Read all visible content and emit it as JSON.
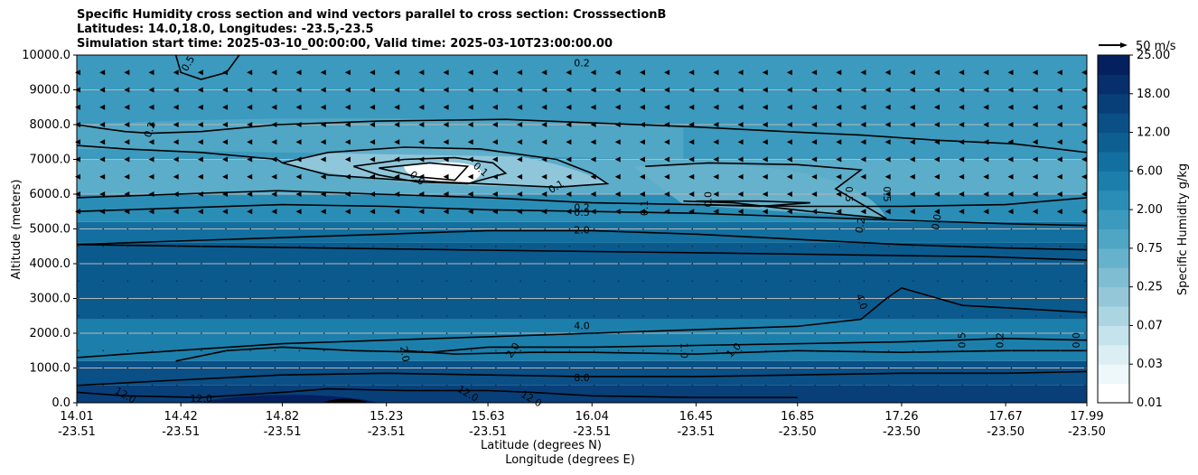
{
  "chart_data": {
    "type": "heatmap",
    "title_lines": [
      "Specific Humidity cross section and wind vectors parallel to cross section: CrosssectionB",
      "Latitudes: 14.0,18.0, Longitudes: -23.5,-23.5",
      "Simulation start time: 2025-03-10_00:00:00, Valid time: 2025-03-10T23:00:00.00"
    ],
    "ylabel": "Altitude (meters)",
    "xlabel_lat": "Latitude (degrees N)",
    "xlabel_lon": "Longitude (degrees E)",
    "ylim": [
      0,
      10000
    ],
    "yticks": [
      "0.0",
      "1000.0",
      "2000.0",
      "3000.0",
      "4000.0",
      "5000.0",
      "6000.0",
      "7000.0",
      "8000.0",
      "9000.0",
      "10000.0"
    ],
    "xticks": [
      {
        "lat": "14.01",
        "lon": "-23.51"
      },
      {
        "lat": "14.42",
        "lon": "-23.51"
      },
      {
        "lat": "14.82",
        "lon": "-23.51"
      },
      {
        "lat": "15.23",
        "lon": "-23.51"
      },
      {
        "lat": "15.63",
        "lon": "-23.51"
      },
      {
        "lat": "16.04",
        "lon": "-23.51"
      },
      {
        "lat": "16.45",
        "lon": "-23.51"
      },
      {
        "lat": "16.85",
        "lon": "-23.50"
      },
      {
        "lat": "17.26",
        "lon": "-23.50"
      },
      {
        "lat": "17.67",
        "lon": "-23.50"
      },
      {
        "lat": "17.99",
        "lon": "-23.50"
      }
    ],
    "grid": "horizontal",
    "colorbar": {
      "label": "Specific Humidity g/kg",
      "ticks": [
        "0.01",
        "0.03",
        "0.07",
        "0.25",
        "0.75",
        "2.00",
        "6.00",
        "12.00",
        "18.00",
        "25.00"
      ],
      "colors": [
        "#ffffff",
        "#eef7f9",
        "#dbeef3",
        "#c5e3ec",
        "#acd5e2",
        "#94c8d9",
        "#7ebdd2",
        "#66b1cb",
        "#4ea5c4",
        "#3b9abe",
        "#2a8db6",
        "#1c7fab",
        "#136f9f",
        "#0d5f92",
        "#0a4f86",
        "#083f79",
        "#062f6b",
        "#04205e"
      ]
    },
    "wind_key": {
      "label": "50 m/s"
    },
    "contour_labels": [
      "0.5",
      "0.2",
      "0.0",
      "0.1",
      "0.1",
      "0.2",
      "0.5",
      "2.0",
      "0.1",
      "0.0",
      "0.5",
      "0.5",
      "0.2",
      "0.0",
      "4.0",
      "4.0",
      "2.0",
      "2.0",
      "1.0",
      "1.0",
      "0.5",
      "0.2",
      "0.0",
      "8.0",
      "12.0",
      "12.0",
      "12.0",
      "12.0",
      "0.2"
    ],
    "contour_lines": [
      {
        "level": "0.5",
        "points": [
          [
            14.4,
            10000
          ],
          [
            14.42,
            9500
          ],
          [
            14.5,
            9300
          ],
          [
            14.6,
            9500
          ],
          [
            14.65,
            10000
          ]
        ]
      },
      {
        "level": "0.2",
        "points": [
          [
            14.01,
            8000
          ],
          [
            14.1,
            7900
          ],
          [
            14.2,
            7800
          ],
          [
            14.3,
            7750
          ],
          [
            14.5,
            7800
          ],
          [
            14.8,
            8000
          ],
          [
            15.2,
            8100
          ],
          [
            15.7,
            8150
          ],
          [
            16.04,
            8050
          ],
          [
            16.4,
            7950
          ],
          [
            16.8,
            7800
          ],
          [
            17.1,
            7700
          ],
          [
            17.4,
            7550
          ],
          [
            17.7,
            7450
          ],
          [
            17.99,
            7200
          ]
        ]
      },
      {
        "level": "0.2",
        "points": [
          [
            14.01,
            7400
          ],
          [
            14.2,
            7300
          ],
          [
            14.5,
            7200
          ],
          [
            14.8,
            7000
          ],
          [
            14.82,
            6900
          ]
        ]
      },
      {
        "level": "0.1",
        "points": [
          [
            14.82,
            6900
          ],
          [
            15.0,
            7200
          ],
          [
            15.3,
            7350
          ],
          [
            15.6,
            7300
          ],
          [
            15.9,
            7000
          ],
          [
            16.04,
            6600
          ],
          [
            16.1,
            6300
          ],
          [
            15.9,
            6200
          ],
          [
            15.6,
            6300
          ],
          [
            15.3,
            6400
          ],
          [
            15.0,
            6550
          ],
          [
            14.82,
            6900
          ]
        ]
      },
      {
        "level": "0.0",
        "points": [
          [
            15.1,
            6800
          ],
          [
            15.3,
            7000
          ],
          [
            15.5,
            7050
          ],
          [
            15.65,
            6900
          ],
          [
            15.7,
            6600
          ],
          [
            15.55,
            6300
          ],
          [
            15.35,
            6350
          ],
          [
            15.2,
            6550
          ],
          [
            15.1,
            6800
          ]
        ]
      },
      {
        "level": "0.0",
        "points": [
          [
            15.2,
            6750
          ],
          [
            15.4,
            6900
          ],
          [
            15.55,
            6800
          ],
          [
            15.5,
            6400
          ],
          [
            15.35,
            6500
          ],
          [
            15.2,
            6750
          ]
        ]
      },
      {
        "level": "0.1",
        "points": [
          [
            16.25,
            6800
          ],
          [
            16.5,
            6900
          ],
          [
            16.85,
            6850
          ],
          [
            17.1,
            6700
          ],
          [
            17.0,
            6150
          ],
          [
            17.2,
            5300
          ],
          [
            16.9,
            5500
          ],
          [
            16.6,
            5750
          ],
          [
            16.4,
            5800
          ]
        ]
      },
      {
        "level": "0.0",
        "points": [
          [
            16.45,
            5800
          ],
          [
            16.7,
            5800
          ],
          [
            16.9,
            5750
          ],
          [
            16.7,
            5650
          ],
          [
            16.45,
            5700
          ]
        ]
      },
      {
        "level": "0.2",
        "points": [
          [
            14.01,
            5900
          ],
          [
            14.4,
            6000
          ],
          [
            14.8,
            6100
          ],
          [
            15.2,
            6000
          ],
          [
            15.63,
            5900
          ],
          [
            16.04,
            5750
          ],
          [
            16.45,
            5700
          ],
          [
            16.85,
            5650
          ],
          [
            17.26,
            5650
          ],
          [
            17.67,
            5700
          ],
          [
            17.99,
            5900
          ]
        ]
      },
      {
        "level": "0.5",
        "points": [
          [
            14.01,
            5500
          ],
          [
            14.4,
            5600
          ],
          [
            14.82,
            5700
          ],
          [
            15.23,
            5650
          ],
          [
            15.63,
            5550
          ],
          [
            16.04,
            5500
          ],
          [
            16.45,
            5450
          ],
          [
            16.85,
            5350
          ],
          [
            17.26,
            5250
          ],
          [
            17.67,
            5150
          ],
          [
            17.99,
            5100
          ]
        ]
      },
      {
        "level": "2.0",
        "points": [
          [
            14.01,
            4550
          ],
          [
            14.4,
            4650
          ],
          [
            14.82,
            4750
          ],
          [
            15.23,
            4850
          ],
          [
            15.63,
            4950
          ],
          [
            16.04,
            4950
          ],
          [
            16.45,
            4850
          ],
          [
            16.85,
            4700
          ],
          [
            17.26,
            4550
          ],
          [
            17.67,
            4450
          ],
          [
            17.99,
            4400
          ]
        ]
      },
      {
        "level": "4.0",
        "points": [
          [
            14.01,
            4550
          ],
          [
            14.5,
            4500
          ],
          [
            15.0,
            4450
          ],
          [
            15.5,
            4400
          ],
          [
            16.04,
            4350
          ],
          [
            16.6,
            4300
          ],
          [
            17.1,
            4250
          ],
          [
            17.6,
            4200
          ],
          [
            17.99,
            4100
          ]
        ]
      },
      {
        "level": "4.0",
        "points": [
          [
            14.01,
            1300
          ],
          [
            14.4,
            1500
          ],
          [
            14.82,
            1700
          ],
          [
            15.23,
            1800
          ],
          [
            15.63,
            1900
          ],
          [
            16.04,
            2000
          ],
          [
            16.45,
            2100
          ],
          [
            16.85,
            2200
          ],
          [
            17.1,
            2400
          ],
          [
            17.2,
            3000
          ],
          [
            17.26,
            3300
          ],
          [
            17.5,
            2800
          ],
          [
            17.99,
            2600
          ]
        ]
      },
      {
        "level": "2.0",
        "points": [
          [
            14.4,
            1200
          ],
          [
            14.6,
            1500
          ],
          [
            14.82,
            1600
          ],
          [
            15.1,
            1500
          ],
          [
            15.4,
            1450
          ],
          [
            15.63,
            1600
          ],
          [
            16.04,
            1600
          ],
          [
            16.45,
            1650
          ],
          [
            16.85,
            1700
          ],
          [
            17.26,
            1750
          ],
          [
            17.67,
            1850
          ],
          [
            17.99,
            1800
          ]
        ]
      },
      {
        "level": "1.0",
        "points": [
          [
            15.3,
            1500
          ],
          [
            15.5,
            1400
          ],
          [
            15.8,
            1450
          ],
          [
            16.04,
            1450
          ],
          [
            16.45,
            1400
          ],
          [
            16.85,
            1500
          ],
          [
            17.26,
            1450
          ],
          [
            17.67,
            1500
          ],
          [
            17.99,
            1500
          ]
        ]
      },
      {
        "level": "8.0",
        "points": [
          [
            14.01,
            500
          ],
          [
            14.4,
            650
          ],
          [
            14.82,
            800
          ],
          [
            15.23,
            850
          ],
          [
            15.63,
            800
          ],
          [
            16.04,
            750
          ],
          [
            16.45,
            750
          ],
          [
            16.85,
            800
          ],
          [
            17.26,
            850
          ],
          [
            17.67,
            850
          ],
          [
            17.99,
            900
          ]
        ]
      },
      {
        "level": "12.0",
        "points": [
          [
            14.01,
            300
          ],
          [
            14.2,
            200
          ],
          [
            14.5,
            150
          ],
          [
            14.82,
            300
          ],
          [
            15.0,
            400
          ],
          [
            15.3,
            350
          ],
          [
            15.63,
            350
          ],
          [
            15.8,
            300
          ],
          [
            16.04,
            200
          ],
          [
            16.45,
            150
          ],
          [
            16.85,
            150
          ]
        ]
      }
    ]
  }
}
